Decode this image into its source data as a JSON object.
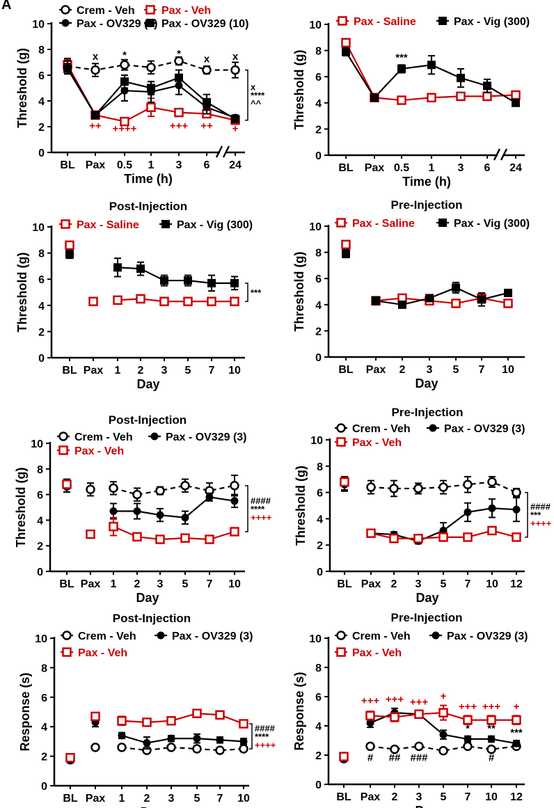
{
  "corner_label": "A",
  "colors": {
    "black": "#000000",
    "red": "#cc0000",
    "white": "#ffffff"
  },
  "chart_data": [
    {
      "id": "A-left",
      "type": "line",
      "title": "",
      "xlabel": "Time (h)",
      "ylabel": "Threshold (g)",
      "ylim": [
        0,
        10
      ],
      "yticks": [
        0,
        2,
        4,
        6,
        8,
        10
      ],
      "categories": [
        "BL",
        "Pax",
        "0.5",
        "1",
        "3",
        "6",
        "24"
      ],
      "axis_break": true,
      "legend": {
        "placement": "top",
        "columns": 2
      },
      "series": [
        {
          "name": "Crem - Veh",
          "marker": "circle-open",
          "color": "#000000",
          "dash": true,
          "values": [
            6.7,
            6.4,
            6.8,
            6.6,
            7.1,
            6.4,
            6.4
          ],
          "errors": [
            0.6,
            0.5,
            0.4,
            0.5,
            0.3,
            0.3,
            0.6
          ]
        },
        {
          "name": "Pax - Veh",
          "marker": "square-open",
          "color": "#cc0000",
          "values": [
            6.8,
            2.9,
            2.4,
            3.5,
            3.1,
            3.0,
            2.5
          ],
          "errors": [
            0.4,
            0.2,
            0.2,
            0.7,
            0.3,
            0.3,
            0.3
          ]
        },
        {
          "name": "Pax - OV329 (3)",
          "marker": "circle-filled",
          "color": "#000000",
          "values": [
            6.6,
            2.9,
            4.8,
            4.7,
            5.2,
            3.5,
            2.7
          ],
          "errors": [
            0.5,
            0.2,
            0.8,
            0.8,
            0.7,
            0.5,
            0.2
          ]
        },
        {
          "name": "Pax - OV329 (10)",
          "marker": "square-filled",
          "color": "#000000",
          "values": [
            6.5,
            2.9,
            5.5,
            5.0,
            5.8,
            3.9,
            2.6
          ],
          "errors": [
            0.4,
            0.2,
            0.5,
            0.5,
            0.6,
            0.6,
            0.2
          ]
        }
      ],
      "annotations": [
        {
          "cat": 1,
          "y": 7.2,
          "text": "x",
          "color": "#000000"
        },
        {
          "cat": 2,
          "y": 7.3,
          "text": "*",
          "color": "#000000"
        },
        {
          "cat": 4,
          "y": 7.4,
          "text": "*",
          "color": "#000000"
        },
        {
          "cat": 5,
          "y": 7.0,
          "text": "x",
          "color": "#000000"
        },
        {
          "cat": 6,
          "y": 7.2,
          "text": "x",
          "color": "#000000"
        },
        {
          "cat": 1,
          "y": 1.8,
          "text": "++",
          "color": "#cc0000"
        },
        {
          "cat": 2,
          "y": 1.6,
          "text": "++++",
          "color": "#cc0000"
        },
        {
          "cat": 4,
          "y": 1.8,
          "text": "+++",
          "color": "#cc0000"
        },
        {
          "cat": 5,
          "y": 1.8,
          "text": "++",
          "color": "#cc0000"
        },
        {
          "cat": 6,
          "y": 1.6,
          "text": "+",
          "color": "#cc0000"
        }
      ],
      "bracket": {
        "from": 6.4,
        "to": 2.5,
        "labels": [
          {
            "text": "x",
            "color": "#000000"
          },
          {
            "text": "****",
            "color": "#000000"
          },
          {
            "text": "^^",
            "color": "#000000"
          }
        ]
      }
    },
    {
      "id": "A-right",
      "type": "line",
      "title": "",
      "xlabel": "Time (h)",
      "ylabel": "Threshold (g)",
      "ylim": [
        0,
        10
      ],
      "yticks": [
        0,
        2,
        4,
        6,
        8,
        10
      ],
      "categories": [
        "BL",
        "Pax",
        "0.5",
        "1",
        "3",
        "6",
        "24"
      ],
      "axis_break": true,
      "legend": {
        "placement": "top",
        "columns": 2
      },
      "series": [
        {
          "name": "Pax - Saline",
          "marker": "square-open",
          "color": "#cc0000",
          "values": [
            8.6,
            4.4,
            4.2,
            4.4,
            4.5,
            4.5,
            4.6
          ],
          "errors": [
            0.3,
            0.2,
            0.15,
            0.2,
            0.15,
            0.2,
            0.15
          ]
        },
        {
          "name": "Pax - Vig (300)",
          "marker": "square-filled",
          "color": "#000000",
          "values": [
            7.9,
            4.4,
            6.6,
            6.9,
            5.9,
            5.3,
            4.0
          ],
          "errors": [
            0.3,
            0.2,
            0.3,
            0.7,
            0.7,
            0.5,
            0.2
          ]
        }
      ],
      "annotations": [
        {
          "cat": 2,
          "y": 7.2,
          "text": "***",
          "color": "#000000"
        }
      ],
      "bracket": null
    },
    {
      "id": "B-left",
      "type": "line",
      "title": "Post-Injection",
      "xlabel": "Day",
      "ylabel": "Threshold (g)",
      "ylim": [
        0,
        10
      ],
      "yticks": [
        0,
        2,
        4,
        6,
        8,
        10
      ],
      "categories": [
        "BL",
        "Pax",
        "1",
        "2",
        "3",
        "5",
        "7",
        "10"
      ],
      "axis_break": false,
      "legend": {
        "placement": "top",
        "columns": 2
      },
      "series": [
        {
          "name": "Pax - Saline",
          "marker": "square-open",
          "color": "#cc0000",
          "values": [
            8.6,
            4.3,
            4.4,
            4.5,
            4.3,
            4.3,
            4.3,
            4.3
          ],
          "errors": [
            0.3,
            0.2,
            0.2,
            0.3,
            0.2,
            0.2,
            0.2,
            0.2
          ],
          "connect_from": 2
        },
        {
          "name": "Pax - Vig (300)",
          "marker": "square-filled",
          "color": "#000000",
          "values": [
            7.9,
            null,
            6.9,
            6.8,
            5.9,
            5.9,
            5.7,
            5.7
          ],
          "errors": [
            0.3,
            0,
            0.7,
            0.5,
            0.4,
            0.4,
            0.6,
            0.5
          ],
          "connect_from": 2
        }
      ],
      "annotations": [],
      "bracket": {
        "from": 5.7,
        "to": 4.3,
        "labels": [
          {
            "text": "***",
            "color": "#000000"
          }
        ]
      }
    },
    {
      "id": "B-right",
      "type": "line",
      "title": "Pre-Injection",
      "xlabel": "Day",
      "ylabel": "Threshold (g)",
      "ylim": [
        0,
        10
      ],
      "yticks": [
        0,
        2,
        4,
        6,
        8,
        10
      ],
      "categories": [
        "BL",
        "Pax",
        "2",
        "3",
        "5",
        "7",
        "10"
      ],
      "axis_break": false,
      "legend": {
        "placement": "top",
        "columns": 2
      },
      "series": [
        {
          "name": "Pax - Saline",
          "marker": "square-open",
          "color": "#cc0000",
          "values": [
            8.6,
            4.3,
            4.5,
            4.3,
            4.1,
            4.5,
            4.1
          ],
          "errors": [
            0.3,
            0.3,
            0.2,
            0.2,
            0.2,
            0.3,
            0.3
          ],
          "connect_from": 1
        },
        {
          "name": "Pax - Vig (300)",
          "marker": "square-filled",
          "color": "#000000",
          "values": [
            7.9,
            4.3,
            4.0,
            4.5,
            5.3,
            4.4,
            4.9
          ],
          "errors": [
            0.3,
            0.3,
            0.2,
            0.2,
            0.4,
            0.5,
            0.2
          ],
          "connect_from": 1
        }
      ],
      "annotations": [],
      "bracket": null
    },
    {
      "id": "C-left",
      "type": "line",
      "title": "Post-Injection",
      "xlabel": "Day",
      "ylabel": "Threshold (g)",
      "ylim": [
        0,
        10
      ],
      "yticks": [
        0,
        2,
        4,
        6,
        8,
        10
      ],
      "categories": [
        "BL",
        "Pax",
        "1",
        "2",
        "3",
        "5",
        "7",
        "10"
      ],
      "axis_break": false,
      "legend": {
        "placement": "top",
        "columns": 2
      },
      "series": [
        {
          "name": "Crem - Veh",
          "marker": "circle-open",
          "color": "#000000",
          "dash": true,
          "values": [
            6.7,
            6.4,
            6.5,
            6.0,
            6.3,
            6.7,
            6.3,
            6.7
          ],
          "errors": [
            0.5,
            0.5,
            0.5,
            0.5,
            0.3,
            0.5,
            0.6,
            0.8
          ],
          "connect_from": 2
        },
        {
          "name": "Pax - OV329 (3)",
          "marker": "circle-filled",
          "color": "#000000",
          "values": [
            6.6,
            null,
            4.7,
            4.7,
            4.4,
            4.2,
            5.8,
            5.5
          ],
          "errors": [
            0.4,
            0,
            0.6,
            0.6,
            0.5,
            0.5,
            0.3,
            0.5
          ],
          "connect_from": 2
        },
        {
          "name": "Pax - Veh",
          "marker": "square-open",
          "color": "#cc0000",
          "values": [
            6.8,
            2.9,
            3.5,
            2.7,
            2.5,
            2.6,
            2.5,
            3.1
          ],
          "errors": [
            0.3,
            0.2,
            0.7,
            0.2,
            0.2,
            0.2,
            0.2,
            0.2
          ],
          "connect_from": 2
        }
      ],
      "annotations": [],
      "bracket": {
        "from": 6.7,
        "to": 3.1,
        "labels": [
          {
            "text": "####",
            "color": "#000000"
          },
          {
            "text": "****",
            "color": "#000000"
          },
          {
            "text": "++++",
            "color": "#cc0000"
          }
        ]
      }
    },
    {
      "id": "C-right",
      "type": "line",
      "title": "Pre-Injection",
      "xlabel": "Day",
      "ylabel": "Threshold (g)",
      "ylim": [
        0,
        10
      ],
      "yticks": [
        0,
        2,
        4,
        6,
        8,
        10
      ],
      "categories": [
        "BL",
        "Pax",
        "2",
        "3",
        "5",
        "7",
        "10",
        "12"
      ],
      "axis_break": false,
      "legend": {
        "placement": "top",
        "columns": 2
      },
      "series": [
        {
          "name": "Crem - Veh",
          "marker": "circle-open",
          "color": "#000000",
          "dash": true,
          "values": [
            6.7,
            6.4,
            6.3,
            6.3,
            6.4,
            6.6,
            6.8,
            6.0
          ],
          "errors": [
            0.5,
            0.5,
            0.6,
            0.4,
            0.5,
            0.6,
            0.4,
            0.3
          ],
          "connect_from": 1
        },
        {
          "name": "Pax - OV329 (3)",
          "marker": "circle-filled",
          "color": "#000000",
          "values": [
            6.6,
            2.9,
            2.8,
            2.3,
            3.1,
            4.5,
            4.8,
            4.7
          ],
          "errors": [
            0.5,
            0.2,
            0.2,
            0.2,
            0.6,
            0.7,
            0.7,
            0.9
          ],
          "connect_from": 1
        },
        {
          "name": "Pax - Veh",
          "marker": "square-open",
          "color": "#cc0000",
          "values": [
            6.8,
            2.9,
            2.5,
            2.5,
            2.6,
            2.6,
            3.1,
            2.6
          ],
          "errors": [
            0.3,
            0.2,
            0.3,
            0.2,
            0.3,
            0.2,
            0.2,
            0.1
          ],
          "connect_from": 1
        }
      ],
      "annotations": [],
      "bracket": {
        "from": 6.0,
        "to": 2.6,
        "labels": [
          {
            "text": "####",
            "color": "#000000"
          },
          {
            "text": "***",
            "color": "#000000"
          },
          {
            "text": "++++",
            "color": "#cc0000"
          }
        ]
      }
    },
    {
      "id": "D-left",
      "type": "line",
      "title": "Post-Injection",
      "xlabel": "Day",
      "ylabel": "Response (s)",
      "ylim": [
        0,
        10
      ],
      "yticks": [
        0,
        2,
        4,
        6,
        8,
        10
      ],
      "categories": [
        "BL",
        "Pax",
        "1",
        "2",
        "3",
        "5",
        "7",
        "10"
      ],
      "axis_break": false,
      "legend": {
        "placement": "top",
        "columns": 2
      },
      "series": [
        {
          "name": "Crem - Veh",
          "marker": "circle-open",
          "color": "#000000",
          "dash": true,
          "values": [
            1.8,
            2.6,
            2.6,
            2.4,
            2.6,
            2.5,
            2.4,
            2.5
          ],
          "errors": [
            0.15,
            0.15,
            0.15,
            0.15,
            0.15,
            0.15,
            0.15,
            0.15
          ],
          "connect_from": 2
        },
        {
          "name": "Pax - OV329 (3)",
          "marker": "circle-filled",
          "color": "#000000",
          "values": [
            1.7,
            4.3,
            3.4,
            2.9,
            3.2,
            3.2,
            3.1,
            3.0
          ],
          "errors": [
            0.15,
            0.3,
            0.2,
            0.4,
            0.2,
            0.3,
            0.2,
            0.2
          ],
          "connect_from": 2
        },
        {
          "name": "Pax - Veh",
          "marker": "square-open",
          "color": "#cc0000",
          "values": [
            1.9,
            4.7,
            4.4,
            4.3,
            4.4,
            4.9,
            4.8,
            4.2
          ],
          "errors": [
            0.15,
            0.2,
            0.3,
            0.2,
            0.2,
            0.2,
            0.2,
            0.2
          ],
          "connect_from": 2
        }
      ],
      "annotations": [],
      "bracket": {
        "from": 4.2,
        "to": 2.5,
        "labels": [
          {
            "text": "####",
            "color": "#000000"
          },
          {
            "text": "****",
            "color": "#000000"
          },
          {
            "text": "++++",
            "color": "#cc0000"
          }
        ]
      }
    },
    {
      "id": "D-right",
      "type": "line",
      "title": "Pre-Injection",
      "xlabel": "Day",
      "ylabel": "Response (s)",
      "ylim": [
        0,
        10
      ],
      "yticks": [
        0,
        2,
        4,
        6,
        8,
        10
      ],
      "categories": [
        "BL",
        "Pax",
        "2",
        "3",
        "5",
        "7",
        "10",
        "12"
      ],
      "axis_break": false,
      "legend": {
        "placement": "top",
        "columns": 2
      },
      "series": [
        {
          "name": "Crem - Veh",
          "marker": "circle-open",
          "color": "#000000",
          "dash": true,
          "values": [
            1.8,
            2.6,
            2.4,
            2.6,
            2.3,
            2.6,
            2.4,
            2.6
          ],
          "errors": [
            0.15,
            0.15,
            0.15,
            0.15,
            0.15,
            0.15,
            0.15,
            0.15
          ],
          "connect_from": 1
        },
        {
          "name": "Pax - OV329 (3)",
          "marker": "circle-filled",
          "color": "#000000",
          "values": [
            1.7,
            4.2,
            4.9,
            4.8,
            3.4,
            3.1,
            3.1,
            2.8
          ],
          "errors": [
            0.15,
            0.3,
            0.3,
            0.2,
            0.3,
            0.2,
            0.2,
            0.2
          ],
          "connect_from": 1
        },
        {
          "name": "Pax - Veh",
          "marker": "square-open",
          "color": "#cc0000",
          "values": [
            1.9,
            4.7,
            4.6,
            4.8,
            4.9,
            4.4,
            4.4,
            4.4
          ],
          "errors": [
            0.15,
            0.3,
            0.3,
            0.2,
            0.5,
            0.3,
            0.3,
            0.3
          ],
          "connect_from": 1
        }
      ],
      "annotations": [
        {
          "cat": 1,
          "y": 5.5,
          "text": "+++",
          "color": "#cc0000"
        },
        {
          "cat": 2,
          "y": 5.6,
          "text": "+++",
          "color": "#cc0000"
        },
        {
          "cat": 3,
          "y": 5.4,
          "text": "+++",
          "color": "#cc0000"
        },
        {
          "cat": 4,
          "y": 5.8,
          "text": "+",
          "color": "#cc0000"
        },
        {
          "cat": 5,
          "y": 5.1,
          "text": "+++",
          "color": "#cc0000"
        },
        {
          "cat": 6,
          "y": 5.1,
          "text": "+++",
          "color": "#cc0000"
        },
        {
          "cat": 7,
          "y": 5.1,
          "text": "+",
          "color": "#cc0000"
        },
        {
          "cat": 1,
          "y": 1.6,
          "text": "#",
          "color": "#000000"
        },
        {
          "cat": 2,
          "y": 1.6,
          "text": "##",
          "color": "#000000"
        },
        {
          "cat": 3,
          "y": 1.6,
          "text": "###",
          "color": "#000000"
        },
        {
          "cat": 5,
          "y": 3.6,
          "text": "*",
          "color": "#000000"
        },
        {
          "cat": 6,
          "y": 3.6,
          "text": "**",
          "color": "#000000"
        },
        {
          "cat": 7,
          "y": 3.3,
          "text": "***",
          "color": "#000000"
        },
        {
          "cat": 6,
          "y": 1.6,
          "text": "#",
          "color": "#000000"
        }
      ],
      "bracket": null
    }
  ]
}
